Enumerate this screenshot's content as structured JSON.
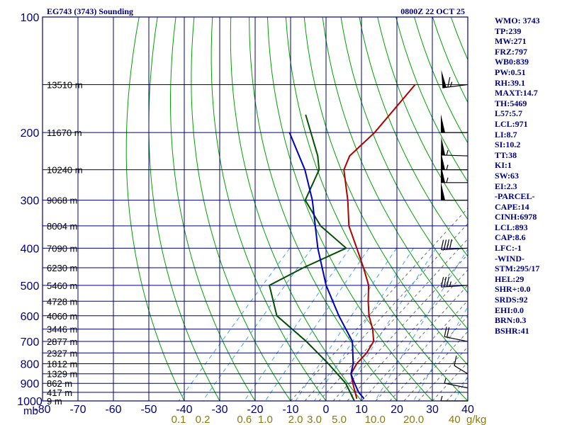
{
  "colors": {
    "frame": "#000080",
    "dry_adiabat": "#00a000",
    "moist_adiabat": "#606060",
    "mixing_ratio": "#3399ff",
    "temperature": "#b00000",
    "dewpoint": "#005000",
    "parcel": "#0000c0",
    "wind": "#000000",
    "mixing_label": "#8a7a10"
  },
  "chart_data": {
    "type": "skew-t",
    "title_left": "EG743 (3743) Sounding",
    "title_right": "0800Z 22 OCT 25",
    "pressure_axis": {
      "label": "mb",
      "ticks": [
        100,
        200,
        300,
        400,
        500,
        600,
        700,
        800,
        900,
        1000
      ],
      "range": [
        100,
        1000
      ]
    },
    "temperature_axis": {
      "unit": "°C",
      "ticks": [
        -80,
        -70,
        -60,
        -50,
        -40,
        -30,
        -20,
        -10,
        0,
        10,
        20,
        30,
        40
      ],
      "tick_labels": [
        "-80",
        "-70",
        "-60",
        "-50",
        "-40",
        "-30",
        "-20",
        "-10",
        "0",
        "10",
        "20",
        "30",
        "40"
      ],
      "range": [
        -80,
        40
      ]
    },
    "mixing_ratio_labels": {
      "unit": "g/kg",
      "values": [
        "0.1",
        "0.2",
        "0.6",
        "1.0",
        "2.0",
        "3.0",
        "5.0",
        "10.0",
        "20.0",
        "40"
      ]
    },
    "heights": [
      {
        "p": 150,
        "label": "13510 m"
      },
      {
        "p": 200,
        "label": "11670 m"
      },
      {
        "p": 250,
        "label": "10240 m"
      },
      {
        "p": 300,
        "label": "9068 m"
      },
      {
        "p": 350,
        "label": "8004 m"
      },
      {
        "p": 400,
        "label": "7090 m"
      },
      {
        "p": 450,
        "label": "6230 m"
      },
      {
        "p": 500,
        "label": "5460 m"
      },
      {
        "p": 550,
        "label": "4728 m"
      },
      {
        "p": 600,
        "label": "4060 m"
      },
      {
        "p": 650,
        "label": "3446 m"
      },
      {
        "p": 700,
        "label": "2877 m"
      },
      {
        "p": 750,
        "label": "2327 m"
      },
      {
        "p": 800,
        "label": "1812 m"
      },
      {
        "p": 850,
        "label": "1329 m"
      },
      {
        "p": 900,
        "label": "862 m"
      },
      {
        "p": 950,
        "label": "417 m"
      },
      {
        "p": 1000,
        "label": "9 m"
      }
    ],
    "series": [
      {
        "name": "temperature",
        "points": [
          {
            "p": 150,
            "t": -57
          },
          {
            "p": 200,
            "t": -56
          },
          {
            "p": 230,
            "t": -57
          },
          {
            "p": 250,
            "t": -55
          },
          {
            "p": 300,
            "t": -46
          },
          {
            "p": 350,
            "t": -39
          },
          {
            "p": 400,
            "t": -31
          },
          {
            "p": 450,
            "t": -24
          },
          {
            "p": 500,
            "t": -18
          },
          {
            "p": 550,
            "t": -14
          },
          {
            "p": 600,
            "t": -10
          },
          {
            "p": 650,
            "t": -5.5
          },
          {
            "p": 700,
            "t": -2
          },
          {
            "p": 750,
            "t": -1
          },
          {
            "p": 800,
            "t": -1
          },
          {
            "p": 850,
            "t": 0
          },
          {
            "p": 900,
            "t": 3
          },
          {
            "p": 950,
            "t": 6
          },
          {
            "p": 985,
            "t": 8
          }
        ]
      },
      {
        "name": "dewpoint",
        "points": [
          {
            "p": 180,
            "t": -80
          },
          {
            "p": 230,
            "t": -66
          },
          {
            "p": 250,
            "t": -62
          },
          {
            "p": 300,
            "t": -58
          },
          {
            "p": 350,
            "t": -47
          },
          {
            "p": 400,
            "t": -34
          },
          {
            "p": 450,
            "t": -41
          },
          {
            "p": 500,
            "t": -46
          },
          {
            "p": 600,
            "t": -36
          },
          {
            "p": 700,
            "t": -21
          },
          {
            "p": 800,
            "t": -9
          },
          {
            "p": 900,
            "t": 1
          },
          {
            "p": 1000,
            "t": 8
          }
        ]
      },
      {
        "name": "parcel",
        "points": [
          {
            "p": 200,
            "t": -80
          },
          {
            "p": 250,
            "t": -66
          },
          {
            "p": 300,
            "t": -56
          },
          {
            "p": 400,
            "t": -42
          },
          {
            "p": 500,
            "t": -30
          },
          {
            "p": 600,
            "t": -18.5
          },
          {
            "p": 700,
            "t": -8
          },
          {
            "p": 800,
            "t": -2
          },
          {
            "p": 850,
            "t": 0
          },
          {
            "p": 900,
            "t": 3.5
          },
          {
            "p": 950,
            "t": 7
          },
          {
            "p": 985,
            "t": 10
          }
        ]
      }
    ],
    "winds": [
      {
        "p": 150,
        "dir": 250,
        "speed_kt": 65
      },
      {
        "p": 200,
        "dir": 270,
        "speed_kt": 50
      },
      {
        "p": 230,
        "dir": 275,
        "speed_kt": 55
      },
      {
        "p": 250,
        "dir": 270,
        "speed_kt": 55
      },
      {
        "p": 270,
        "dir": 270,
        "speed_kt": 55
      },
      {
        "p": 300,
        "dir": 270,
        "speed_kt": 50
      },
      {
        "p": 400,
        "dir": 260,
        "speed_kt": 40
      },
      {
        "p": 500,
        "dir": 260,
        "speed_kt": 35
      },
      {
        "p": 700,
        "dir": 300,
        "speed_kt": 20
      },
      {
        "p": 850,
        "dir": 330,
        "speed_kt": 10
      },
      {
        "p": 925,
        "dir": 300,
        "speed_kt": 5
      },
      {
        "p": 1000,
        "dir": 270,
        "speed_kt": 5
      }
    ]
  },
  "indices": [
    "WMO: 3743",
    "TP:239",
    "MW:271",
    "FRZ:797",
    "WB0:839",
    "PW:0.51",
    "RH:39.1",
    "MAXT:14.7",
    "TH:5469",
    "L57:5.7",
    "LCL:971",
    "LI:8.7",
    "SI:10.2",
    "TT:38",
    "KI:1",
    "SW:63",
    "EI:2.3",
    "-PARCEL-",
    "CAPE:14",
    "CINH:6978",
    "LCL:893",
    "CAP:8.6",
    "LFC:-1",
    "-WIND-",
    "STM:295/17",
    "HEL:29",
    "SHR+:0.0",
    "SRDS:92",
    "EHI:0.0",
    "BRN:0.3",
    "BSHR:41"
  ]
}
